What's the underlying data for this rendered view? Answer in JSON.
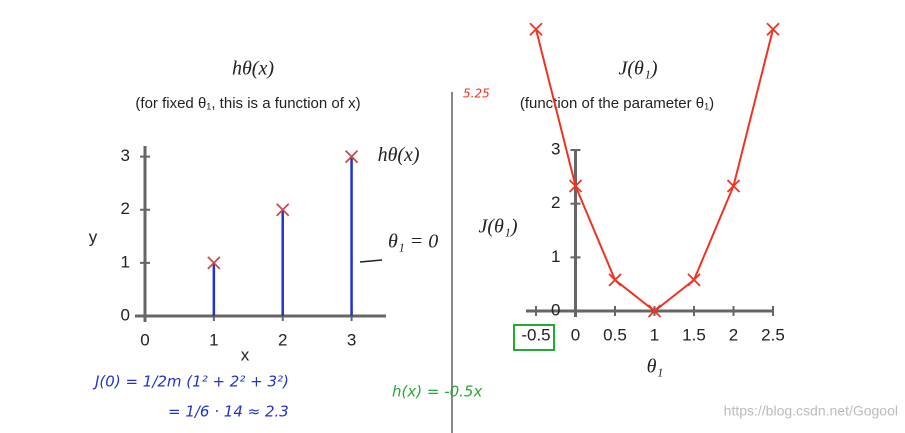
{
  "chart_data": [
    {
      "type": "scatter",
      "title": "hθ(x)",
      "subtitle": "(for fixed θ₁, this is a function of x)",
      "x_label": "x",
      "y_label": "y",
      "x": [
        1,
        2,
        3
      ],
      "series": [
        {
          "name": "hθ(x)",
          "color": "#c0504d",
          "values": [
            1,
            2,
            3
          ]
        }
      ],
      "residual_color": "#2233cc",
      "xlim": [
        0,
        3.5
      ],
      "ylim": [
        0,
        3.2
      ],
      "xticks": [
        0,
        1,
        2,
        3
      ],
      "yticks": [
        0,
        1,
        2,
        3
      ],
      "annotations": [
        "θ₁ = 0",
        "J(0) = 1/2m (1² + 2² + 3²)",
        "= 1/6 · 14 ≈ 2.3",
        "h(x) = -0.5x"
      ]
    },
    {
      "type": "line",
      "title": "J(θ₁)",
      "subtitle": "(function of the parameter θ₁)",
      "x_label": "θ₁",
      "y_label": "J(θ₁)",
      "x": [
        -0.5,
        0,
        0.5,
        1,
        1.5,
        2,
        2.5
      ],
      "series": [
        {
          "color": "#ee3322",
          "values": [
            5.25,
            2.33,
            0.58,
            0,
            0.58,
            2.33,
            5.25
          ]
        }
      ],
      "xlim": [
        -0.5,
        2.5
      ],
      "ylim": [
        0,
        3
      ],
      "xticks": [
        -0.5,
        0,
        0.5,
        1,
        1.5,
        2,
        2.5
      ],
      "yticks": [
        0,
        1,
        2,
        3
      ],
      "annotations": [
        "5.25"
      ]
    }
  ],
  "watermark": "https://blog.csdn.net/Gogool"
}
